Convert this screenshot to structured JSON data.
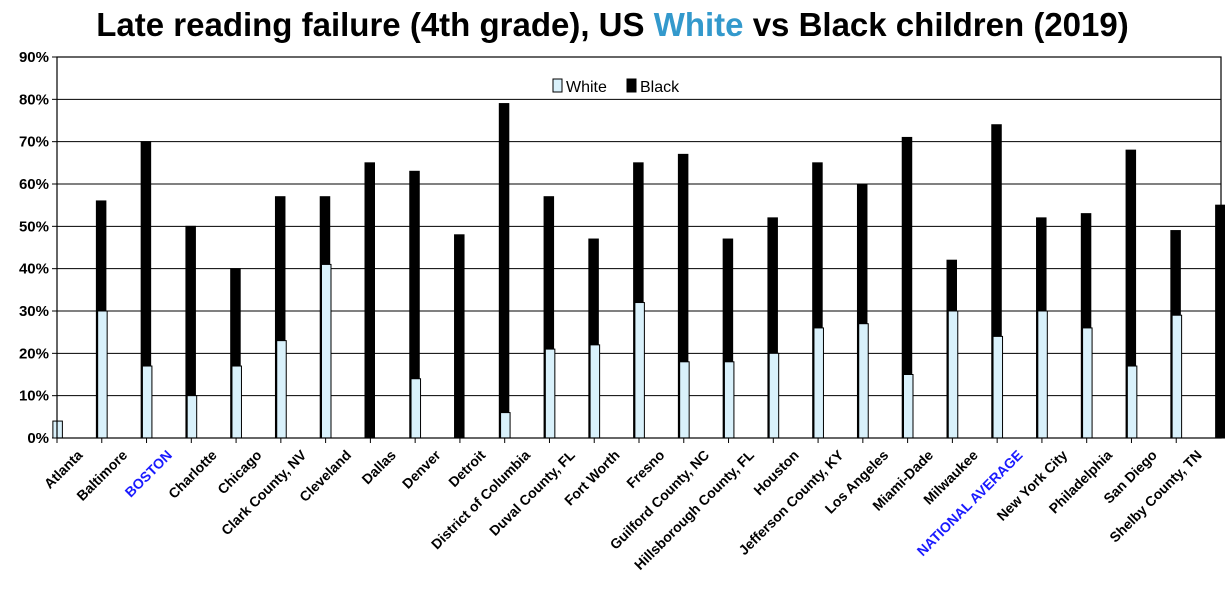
{
  "title": {
    "prefix": "Late reading failure (4th grade), US ",
    "highlight": "White",
    "suffix": " vs Black children (2019)"
  },
  "colors": {
    "white_bar": "#d9f1fb",
    "black_bar": "#000000",
    "title_highlight": "#3399cc",
    "highlight_label": "#1a1aff",
    "gridline": "#000000"
  },
  "chart_data": {
    "type": "bar",
    "title": "Late reading failure (4th grade), US White vs Black children (2019)",
    "xlabel": "",
    "ylabel": "",
    "ylim": [
      0,
      90
    ],
    "yticks": [
      "0%",
      "10%",
      "20%",
      "30%",
      "40%",
      "50%",
      "60%",
      "70%",
      "80%",
      "90%"
    ],
    "grid": true,
    "legend_position": "top-center",
    "categories": [
      "Atlanta",
      "Baltimore",
      "BOSTON",
      "Charlotte",
      "Chicago",
      "Clark County, NV",
      "Cleveland",
      "Dallas",
      "Denver",
      "Detroit",
      "District of Columbia",
      "Duval County, FL",
      "Fort  Worth",
      "Fresno",
      "Guilford County, NC",
      "Hillsborough County, FL",
      "Houston",
      "Jefferson County, KY",
      "Los Angeles",
      "Miami-Dade",
      "Milwaukee",
      "NATIONAL AVERAGE",
      "New York City",
      "Philadelphia",
      "San Diego",
      "Shelby County, TN"
    ],
    "highlighted_categories": [
      "BOSTON",
      "NATIONAL AVERAGE"
    ],
    "series": [
      {
        "name": "White",
        "values": [
          4,
          30,
          17,
          10,
          17,
          23,
          41,
          null,
          14,
          null,
          6,
          21,
          22,
          32,
          18,
          18,
          20,
          26,
          27,
          15,
          30,
          24,
          30,
          26,
          17,
          29
        ]
      },
      {
        "name": "Black",
        "values": [
          56,
          70,
          50,
          40,
          57,
          57,
          65,
          63,
          48,
          79,
          57,
          47,
          65,
          67,
          47,
          52,
          65,
          60,
          71,
          42,
          74,
          52,
          53,
          68,
          49,
          55
        ]
      }
    ]
  }
}
